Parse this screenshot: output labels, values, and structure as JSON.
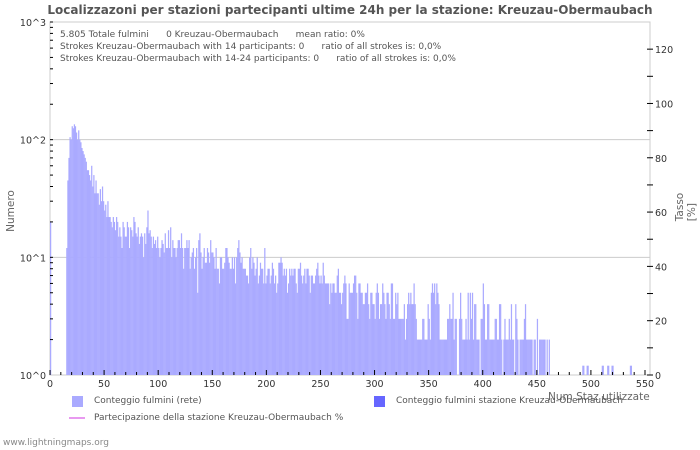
{
  "chart_data": {
    "type": "bar",
    "title": "Localizzazoni per stazioni partecipanti ultime 24h per la stazione: Kreuzau-Obermaubach",
    "xlabel": "Num Staz utilizzate",
    "ylabel": "Numero",
    "ylabel_right": "Tasso [%]",
    "xlim": [
      0,
      550
    ],
    "ylim_log": [
      1,
      1000
    ],
    "yscale": "log",
    "y_right_lim": [
      0,
      130
    ],
    "x_ticks": [
      "0",
      "50",
      "100",
      "150",
      "200",
      "250",
      "300",
      "350",
      "400",
      "450",
      "500",
      "550"
    ],
    "y_ticks": [
      "10^0",
      "10^1",
      "10^2",
      "10^3"
    ],
    "y_right_ticks": [
      "0",
      "20",
      "40",
      "60",
      "80",
      "100",
      "120"
    ],
    "grid": true,
    "legend_position": "bottom",
    "series": [
      {
        "name": "Conteggio fulmini (rete)",
        "color": "#aaaaff",
        "x_start": 1,
        "values": [
          20,
          1,
          1,
          1,
          1,
          1,
          1,
          1,
          1,
          1,
          1,
          1,
          1,
          1,
          1,
          12,
          45,
          70,
          105,
          100,
          130,
          125,
          135,
          130,
          115,
          100,
          120,
          100,
          95,
          85,
          80,
          75,
          70,
          65,
          55,
          55,
          50,
          45,
          60,
          40,
          50,
          35,
          45,
          35,
          35,
          28,
          38,
          30,
          40,
          30,
          25,
          28,
          22,
          30,
          22,
          22,
          20,
          18,
          22,
          20,
          17,
          22,
          20,
          15,
          18,
          15,
          12,
          20,
          18,
          15,
          15,
          20,
          18,
          12,
          18,
          17,
          15,
          22,
          20,
          16,
          15,
          18,
          13,
          15,
          16,
          15,
          10,
          16,
          13,
          18,
          25,
          16,
          17,
          15,
          12,
          15,
          13,
          14,
          12,
          15,
          12,
          10,
          12,
          14,
          13,
          11,
          16,
          12,
          12,
          17,
          12,
          18,
          10,
          14,
          12,
          12,
          10,
          12,
          14,
          14,
          12,
          16,
          12,
          8,
          12,
          12,
          14,
          12,
          14,
          8,
          10,
          11,
          12,
          8,
          10,
          12,
          5,
          14,
          16,
          11,
          8,
          10,
          12,
          9,
          9,
          12,
          11,
          9,
          14,
          11,
          11,
          10,
          8,
          12,
          8,
          8,
          6,
          10,
          10,
          8,
          8,
          9,
          12,
          12,
          10,
          9,
          8,
          8,
          10,
          8,
          10,
          6,
          10,
          12,
          14,
          11,
          9,
          10,
          8,
          8,
          8,
          7,
          7,
          6,
          10,
          12,
          8,
          10,
          9,
          7,
          8,
          10,
          6,
          7,
          9,
          8,
          8,
          6,
          12,
          6,
          7,
          8,
          8,
          6,
          7,
          9,
          8,
          6,
          7,
          5,
          6,
          9,
          9,
          10,
          9,
          7,
          8,
          7,
          8,
          5,
          6,
          8,
          7,
          8,
          7,
          8,
          8,
          6,
          5,
          8,
          8,
          9,
          7,
          6,
          7,
          8,
          6,
          8,
          8,
          7,
          5,
          7,
          7,
          6,
          6,
          7,
          8,
          9,
          7,
          6,
          7,
          6,
          9,
          7,
          6,
          6,
          6,
          6,
          4,
          6,
          5,
          6,
          6,
          5,
          5,
          7,
          8,
          5,
          5,
          4,
          5,
          6,
          7,
          6,
          3,
          3,
          6,
          5,
          5,
          5,
          6,
          7,
          7,
          5,
          3,
          6,
          6,
          5,
          5,
          4,
          4,
          5,
          5,
          6,
          4,
          3,
          5,
          5,
          4,
          4,
          3,
          5,
          6,
          5,
          3,
          4,
          4,
          6,
          5,
          4,
          3,
          5,
          5,
          4,
          3,
          6,
          6,
          3,
          3,
          5,
          4,
          5,
          3,
          3,
          3,
          3,
          3,
          4,
          2,
          3,
          4,
          5,
          4,
          5,
          4,
          4,
          6,
          4,
          3,
          2,
          2,
          2,
          2,
          2,
          3,
          3,
          2,
          2,
          2,
          4,
          3,
          2,
          5,
          6,
          5,
          6,
          4,
          6,
          5,
          4,
          2,
          2,
          2,
          2,
          2,
          2,
          2,
          3,
          3,
          4,
          3,
          3,
          5,
          2,
          3,
          3,
          1,
          1,
          3,
          5,
          3,
          2,
          2,
          2,
          3,
          2,
          5,
          2,
          5,
          3,
          5,
          2,
          4,
          4,
          2,
          2,
          2,
          1,
          3,
          3,
          6,
          4,
          2,
          2,
          4,
          4,
          2,
          2,
          2,
          2,
          2,
          3,
          3,
          2,
          2,
          4,
          4,
          2,
          1,
          2,
          3,
          2,
          2,
          2,
          3,
          2,
          4,
          2,
          2,
          1,
          4,
          3,
          2,
          1,
          2,
          2,
          2,
          2,
          3,
          4,
          2,
          2,
          2,
          2,
          2,
          2,
          1,
          2,
          2,
          1,
          3,
          1,
          2,
          2,
          2,
          2,
          2,
          2,
          1,
          2,
          1,
          2,
          1,
          1,
          1,
          1,
          1,
          1,
          1,
          1,
          1,
          1,
          1,
          1,
          1,
          1,
          1,
          1,
          1,
          1,
          1,
          1,
          1,
          1,
          1,
          1,
          1,
          1,
          1,
          1,
          1,
          1,
          1,
          1,
          1,
          1
        ]
      },
      {
        "name": "Conteggio fulmini stazione Kreuzau-Obermaubach",
        "color": "#6666ff",
        "values": []
      },
      {
        "name": "Partecipazione della stazione Kreuzau-Obermaubach %",
        "color": "#e899f0",
        "type": "line",
        "values": []
      }
    ],
    "annotations": [
      "5.805 Totale fulmini",
      "0 Kreuzau-Obermaubach",
      "mean ratio: 0%",
      "Strokes Kreuzau-Obermaubach with 14 participants: 0",
      "ratio of all strokes is: 0,0%",
      "Strokes Kreuzau-Obermaubach with 14-24 participants: 0",
      "ratio of all strokes is: 0,0%"
    ]
  },
  "info": {
    "line1_a": "5.805 Totale fulmini",
    "line1_b": "0 Kreuzau-Obermaubach",
    "line1_c": "mean ratio: 0%",
    "line2_a": "Strokes Kreuzau-Obermaubach with 14 participants: 0",
    "line2_b": "ratio of all strokes is: 0,0%",
    "line3_a": "Strokes Kreuzau-Obermaubach with 14-24 participants: 0",
    "line3_b": "ratio of all strokes is: 0,0%"
  },
  "legend": {
    "item1": "Conteggio fulmini (rete)",
    "item2": "Conteggio fulmini stazione Kreuzau-Obermaubach",
    "item3": "Partecipazione della stazione Kreuzau-Obermaubach %"
  },
  "footer": "www.lightningmaps.org"
}
